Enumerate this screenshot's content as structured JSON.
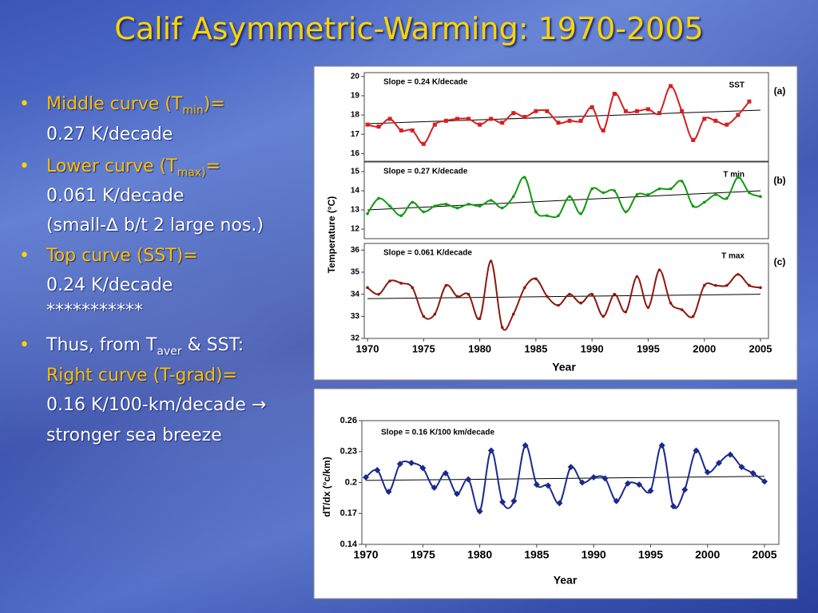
{
  "title": "Calif Asymmetric-Warming: 1970-2005",
  "bullets": [
    {
      "lines": [
        {
          "text": "Middle curve (T",
          "sub": "min",
          "after": ")="
        },
        {
          "text": "0.27 K/decade"
        }
      ]
    },
    {
      "lines": [
        {
          "text": "Lower curve (T",
          "sub": "max)",
          "after": "="
        },
        {
          "text": "0.061 K/decade"
        },
        {
          "text": "(small-∆ b/t 2 large nos.)"
        }
      ]
    },
    {
      "lines": [
        {
          "text": "Top curve (SST)="
        },
        {
          "text": "0.24 K/decade"
        },
        {
          "text": "***********"
        }
      ]
    },
    {
      "lines": [
        {
          "text": "Thus, from T",
          "sub": "aver",
          "after": " & SST:"
        },
        {
          "text": "Right curve (T-grad)="
        },
        {
          "text": "0.16 K/100-km/decade →"
        },
        {
          "text": "stronger sea breeze"
        }
      ]
    }
  ],
  "chart_data": [
    {
      "type": "line",
      "panel": "(a)",
      "label": "SST",
      "annotation": "Slope = 0.24 K/decade",
      "ylim": [
        15.6,
        20.2
      ],
      "yticks": [
        16,
        17,
        18,
        19,
        20
      ],
      "xlim": [
        1970,
        2005
      ],
      "series": [
        {
          "color": "#d42020",
          "marker": "square",
          "x": [
            1970,
            1971,
            1972,
            1973,
            1974,
            1975,
            1976,
            1977,
            1978,
            1979,
            1980,
            1981,
            1982,
            1983,
            1984,
            1985,
            1986,
            1987,
            1988,
            1989,
            1990,
            1991,
            1992,
            1993,
            1994,
            1995,
            1996,
            1997,
            1998,
            1999,
            2000,
            2001,
            2002,
            2003,
            2004
          ],
          "values": [
            17.5,
            17.4,
            17.8,
            17.2,
            17.2,
            16.5,
            17.5,
            17.7,
            17.8,
            17.8,
            17.5,
            17.8,
            17.6,
            18.1,
            17.9,
            18.2,
            18.2,
            17.6,
            17.7,
            17.7,
            18.4,
            17.2,
            19.1,
            18.2,
            18.2,
            18.3,
            18.1,
            19.5,
            18.2,
            16.7,
            17.8,
            17.7,
            17.5,
            18.0,
            18.7
          ]
        }
      ],
      "trend": {
        "x": [
          1970,
          2005
        ],
        "values": [
          17.55,
          18.25
        ]
      }
    },
    {
      "type": "line",
      "panel": "(b)",
      "label": "T min",
      "annotation": "Slope = 0.27 K/decade",
      "ylabel": "Temperature (°C)",
      "ylim": [
        11.5,
        15.5
      ],
      "yticks": [
        12,
        13,
        14,
        15
      ],
      "xlim": [
        1970,
        2005
      ],
      "series": [
        {
          "color": "#109a10",
          "marker": "dot",
          "x": [
            1970,
            1971,
            1972,
            1973,
            1974,
            1975,
            1976,
            1977,
            1978,
            1979,
            1980,
            1981,
            1982,
            1983,
            1984,
            1985,
            1986,
            1987,
            1988,
            1989,
            1990,
            1991,
            1992,
            1993,
            1994,
            1995,
            1996,
            1997,
            1998,
            1999,
            2000,
            2001,
            2002,
            2003,
            2004,
            2005
          ],
          "values": [
            12.8,
            13.6,
            13.2,
            12.7,
            13.4,
            12.9,
            13.2,
            13.3,
            13.1,
            13.3,
            13.2,
            13.5,
            13.1,
            13.7,
            14.7,
            12.9,
            12.7,
            12.7,
            13.7,
            12.8,
            14.1,
            13.9,
            14.0,
            12.9,
            13.8,
            13.8,
            14.1,
            14.1,
            14.5,
            13.2,
            13.4,
            13.8,
            13.6,
            14.7,
            13.9,
            13.7
          ]
        }
      ],
      "trend": {
        "x": [
          1970,
          2005
        ],
        "values": [
          13.0,
          14.0
        ]
      }
    },
    {
      "type": "line",
      "panel": "(c)",
      "label": "T max",
      "annotation": "Slope = 0.061 K/decade",
      "xlabel": "Year",
      "ylim": [
        32,
        36.3
      ],
      "yticks": [
        32,
        33,
        34,
        35,
        36
      ],
      "xlim": [
        1970,
        2005
      ],
      "xticks": [
        1970,
        1975,
        1980,
        1985,
        1990,
        1995,
        2000,
        2005
      ],
      "series": [
        {
          "color": "#8b1a10",
          "marker": "dot",
          "x": [
            1970,
            1971,
            1972,
            1973,
            1974,
            1975,
            1976,
            1977,
            1978,
            1979,
            1980,
            1981,
            1982,
            1983,
            1984,
            1985,
            1986,
            1987,
            1988,
            1989,
            1990,
            1991,
            1992,
            1993,
            1994,
            1995,
            1996,
            1997,
            1998,
            1999,
            2000,
            2001,
            2002,
            2003,
            2004,
            2005
          ],
          "values": [
            34.3,
            34.0,
            34.6,
            34.5,
            34.3,
            33.0,
            33.1,
            34.4,
            33.9,
            34.0,
            32.9,
            35.5,
            32.5,
            33.1,
            34.3,
            34.7,
            33.9,
            33.5,
            34.0,
            33.6,
            34.0,
            33.0,
            34.0,
            33.2,
            34.8,
            33.4,
            35.1,
            33.6,
            33.3,
            33.0,
            34.4,
            34.4,
            34.4,
            34.9,
            34.4,
            34.3
          ]
        }
      ],
      "trend": {
        "x": [
          1970,
          2005
        ],
        "values": [
          33.8,
          34.0
        ]
      }
    },
    {
      "type": "line",
      "annotation": "Slope = 0.16 K/100 km/decade",
      "xlabel": "Year",
      "ylabel": "dT/dx (°c/km)",
      "ylim": [
        0.14,
        0.26
      ],
      "yticks": [
        0.14,
        0.17,
        0.2,
        0.23,
        0.26
      ],
      "xlim": [
        1970,
        2005
      ],
      "xticks": [
        1970,
        1975,
        1980,
        1985,
        1990,
        1995,
        2000,
        2005
      ],
      "series": [
        {
          "color": "#1a2a8c",
          "marker": "diamond",
          "x": [
            1970,
            1971,
            1972,
            1973,
            1974,
            1975,
            1976,
            1977,
            1978,
            1979,
            1980,
            1981,
            1982,
            1983,
            1984,
            1985,
            1986,
            1987,
            1988,
            1989,
            1990,
            1991,
            1992,
            1993,
            1994,
            1995,
            1996,
            1997,
            1998,
            1999,
            2000,
            2001,
            2002,
            2003,
            2004,
            2005
          ],
          "values": [
            0.205,
            0.212,
            0.191,
            0.218,
            0.219,
            0.214,
            0.195,
            0.209,
            0.189,
            0.203,
            0.172,
            0.231,
            0.181,
            0.182,
            0.236,
            0.198,
            0.197,
            0.18,
            0.215,
            0.2,
            0.205,
            0.204,
            0.182,
            0.199,
            0.198,
            0.192,
            0.236,
            0.177,
            0.193,
            0.231,
            0.21,
            0.219,
            0.227,
            0.215,
            0.209,
            0.201
          ]
        }
      ],
      "trend": {
        "x": [
          1970,
          2005
        ],
        "values": [
          0.202,
          0.206
        ]
      }
    }
  ]
}
